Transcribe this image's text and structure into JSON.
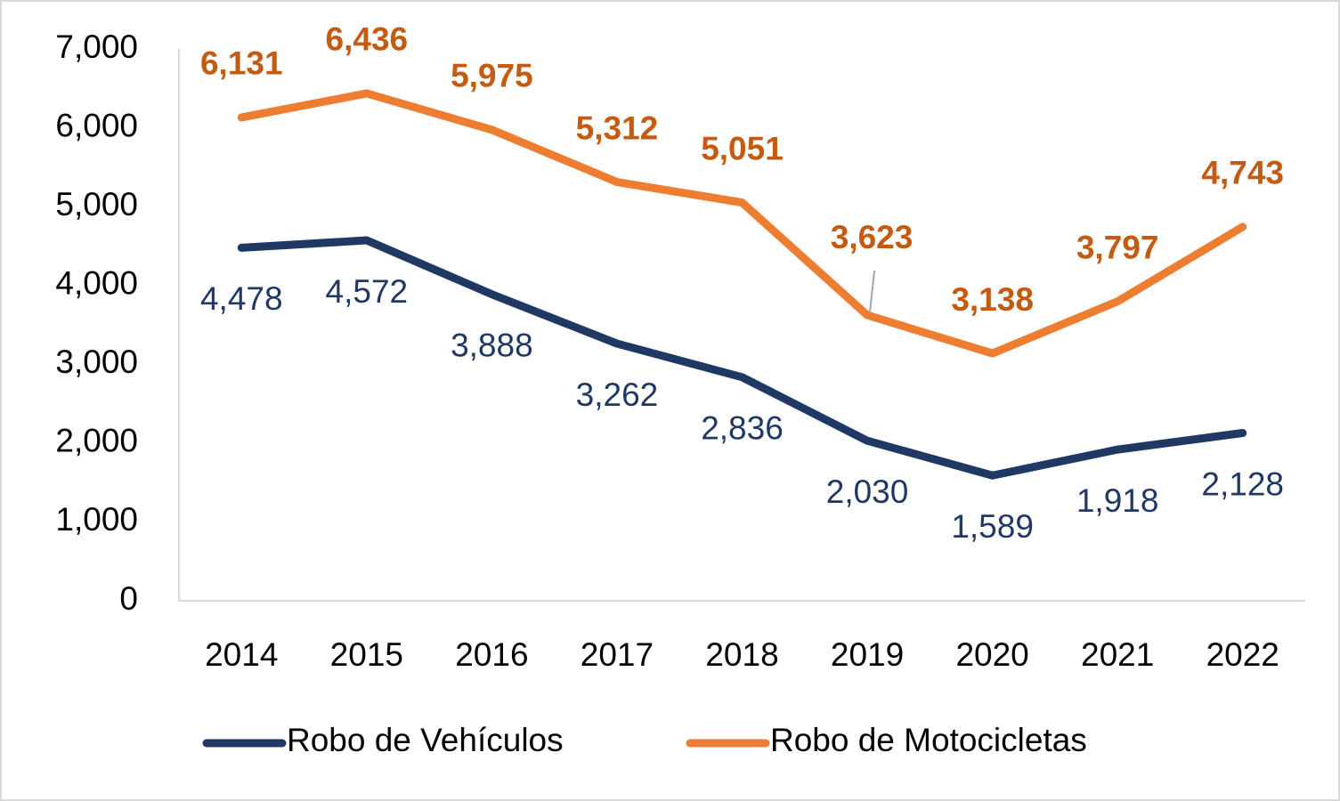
{
  "chart_data": {
    "type": "line",
    "categories": [
      "2014",
      "2015",
      "2016",
      "2017",
      "2018",
      "2019",
      "2020",
      "2021",
      "2022"
    ],
    "series": [
      {
        "name": "Robo de Vehículos",
        "color": "#203864",
        "values": [
          4478,
          4572,
          3888,
          3262,
          2836,
          2030,
          1589,
          1918,
          2128
        ],
        "value_labels": [
          "4,478",
          "4,572",
          "3,888",
          "3,262",
          "2,836",
          "2,030",
          "1,589",
          "1,918",
          "2,128"
        ]
      },
      {
        "name": "Robo de Motocicletas",
        "color": "#ed7d31",
        "values": [
          6131,
          6436,
          5975,
          5312,
          5051,
          3623,
          3138,
          3797,
          4743
        ],
        "value_labels": [
          "6,131",
          "6,436",
          "5,975",
          "5,312",
          "5,051",
          "3,623",
          "3,138",
          "3,797",
          "4,743"
        ]
      }
    ],
    "ylim": [
      0,
      7000
    ],
    "yticks": [
      0,
      {
        "value": 1000,
        "label": "1,000"
      },
      {
        "value": 2000,
        "label": "2,000"
      },
      {
        "value": 3000,
        "label": "3,000"
      },
      {
        "value": 4000,
        "label": "4,000"
      },
      {
        "value": 5000,
        "label": "5,000"
      },
      {
        "value": 6000,
        "label": "6,000"
      },
      {
        "value": 7000,
        "label": "7,000"
      }
    ],
    "legend": "bottom",
    "grid": false
  }
}
